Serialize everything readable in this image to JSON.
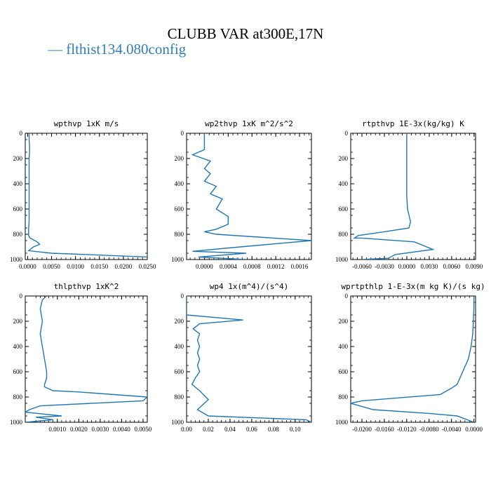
{
  "figure": {
    "title": "CLUBB VAR at300E,17N",
    "legend": {
      "label": "flthist134.080config",
      "color": "#1f77b4"
    }
  },
  "chart_data": [
    {
      "type": "line",
      "title": "wpthvp  1xK m/s",
      "xlim": [
        -0.0005,
        0.025
      ],
      "ylim": [
        1000,
        0
      ],
      "xticks": [
        0.0,
        0.005,
        0.01,
        0.015,
        0.02,
        0.025
      ],
      "xtick_labels": [
        "0.0000",
        "0.0050",
        "0.0100",
        "0.0150",
        "0.0200",
        "0.0250"
      ],
      "yticks": [
        0,
        200,
        400,
        600,
        800,
        1000
      ],
      "series": [
        {
          "x": [
            0.0003,
            0.0003,
            0.0004,
            0.0004,
            0.0003,
            0.0003,
            0.0003,
            0.0003,
            0.0003,
            0.0003,
            0.0003,
            0.0002,
            0.0002,
            0.0002,
            0.0005,
            0.002,
            0.0025,
            0.0012,
            0.0002,
            0.005,
            0.012,
            0.025
          ],
          "y": [
            0,
            50,
            100,
            150,
            200,
            250,
            300,
            400,
            500,
            600,
            700,
            760,
            800,
            810,
            830,
            860,
            880,
            900,
            930,
            950,
            960,
            980
          ]
        }
      ]
    },
    {
      "type": "line",
      "title": "wp2thvp  1xK m^2/s^2",
      "xlim": [
        -0.0003,
        0.0018
      ],
      "ylim": [
        1000,
        0
      ],
      "xticks": [
        0.0,
        0.0004,
        0.0008,
        0.0012,
        0.0016
      ],
      "xtick_labels": [
        "0.0000",
        "0.0004",
        "0.0008",
        "0.0012",
        "0.0016"
      ],
      "yticks": [
        0,
        200,
        400,
        600,
        800,
        1000
      ],
      "series": [
        {
          "x": [
            0.0,
            0.0,
            0.0,
            0.0,
            -0.0001,
            -0.0002,
            0.0001,
            0.0,
            0.0001,
            0.0,
            0.0002,
            0.0001,
            0.0003,
            0.0002,
            0.0004,
            0.0004,
            0.0002,
            0.0,
            0.0002,
            0.0018,
            0.0006,
            -0.0002,
            0.0007,
            -0.0001,
            0.0007
          ],
          "y": [
            0,
            50,
            100,
            130,
            150,
            170,
            220,
            280,
            320,
            380,
            420,
            480,
            520,
            600,
            660,
            720,
            760,
            780,
            800,
            850,
            900,
            935,
            950,
            980,
            1000
          ]
        }
      ]
    },
    {
      "type": "line",
      "title": "rtpthvp  1E-3x(kg/kg) K",
      "xlim": [
        -0.0075,
        0.0092
      ],
      "ylim": [
        1000,
        0
      ],
      "xticks": [
        -0.006,
        -0.003,
        0.0,
        0.003,
        0.006,
        0.009
      ],
      "xtick_labels": [
        "-0.0060",
        "-0.0030",
        "0.0000",
        "0.0030",
        "0.0060",
        "0.0090"
      ],
      "yticks": [
        0,
        200,
        400,
        600,
        800,
        1000
      ],
      "series": [
        {
          "x": [
            0.0,
            0.0,
            0.0,
            0.0,
            0.0001,
            0.0003,
            0.0005,
            0.0003,
            -0.003,
            -0.0065,
            -0.007,
            -0.006,
            0.001,
            0.0035,
            -0.0015,
            -0.0025,
            -0.006
          ],
          "y": [
            0,
            100,
            300,
            500,
            600,
            650,
            700,
            750,
            780,
            810,
            830,
            830,
            860,
            920,
            960,
            990,
            1000
          ]
        }
      ]
    },
    {
      "type": "line",
      "title": "thlpthvp  1xK^2",
      "xlim": [
        -0.0005,
        0.0052
      ],
      "ylim": [
        1000,
        0
      ],
      "xticks": [
        0.001,
        0.002,
        0.003,
        0.004,
        0.005
      ],
      "xtick_labels": [
        "0.0010",
        "0.0020",
        "0.0030",
        "0.0040",
        "0.0050"
      ],
      "yticks": [
        0,
        200,
        400,
        600,
        800,
        1000
      ],
      "series": [
        {
          "x": [
            0.0005,
            0.0003,
            0.0002,
            0.0003,
            0.0002,
            0.0003,
            0.0004,
            0.0005,
            0.0005,
            0.0004,
            0.0004,
            0.0008,
            0.002,
            0.0052,
            0.005,
            0.0002,
            -0.0003,
            -0.0005,
            0.0012,
            0.0,
            0.0008,
            -0.0005
          ],
          "y": [
            0,
            30,
            100,
            200,
            300,
            400,
            500,
            600,
            650,
            700,
            720,
            750,
            760,
            800,
            830,
            870,
            900,
            920,
            950,
            960,
            980,
            1000
          ]
        }
      ]
    },
    {
      "type": "line",
      "title": "wp4  1x(m^4)/(s^4)",
      "xlim": [
        0.0,
        0.115
      ],
      "ylim": [
        1000,
        0
      ],
      "xticks": [
        0.0,
        0.02,
        0.04,
        0.06,
        0.08,
        0.1
      ],
      "xtick_labels": [
        "0.00",
        "0.02",
        "0.04",
        "0.06",
        "0.08",
        "0.10"
      ],
      "yticks": [
        0,
        200,
        400,
        600,
        800,
        1000
      ],
      "series": [
        {
          "x": [
            0.0,
            0.0,
            0.0,
            0.0,
            0.0,
            0.052,
            0.012,
            0.006,
            0.012,
            0.01,
            0.012,
            0.01,
            0.012,
            0.01,
            0.012,
            0.008,
            0.005,
            0.012,
            0.02,
            0.01,
            0.02,
            0.11,
            0.115
          ],
          "y": [
            0,
            50,
            100,
            130,
            150,
            190,
            220,
            260,
            300,
            350,
            400,
            450,
            500,
            550,
            600,
            650,
            700,
            750,
            820,
            900,
            950,
            980,
            1000
          ]
        }
      ]
    },
    {
      "type": "line",
      "title": "wprtpthlp  1-E-3x(m kg K)/(s kg)",
      "xlim": [
        -0.022,
        0.0003
      ],
      "ylim": [
        1000,
        0
      ],
      "xticks": [
        -0.02,
        -0.016,
        -0.012,
        -0.008,
        -0.004,
        0.0
      ],
      "xtick_labels": [
        "-0.0200",
        "-0.0160",
        "-0.0120",
        "-0.0080",
        "-0.0040",
        "0.0000"
      ],
      "yticks": [
        0,
        200,
        400,
        600,
        800,
        1000
      ],
      "series": [
        {
          "x": [
            0.0,
            0.0,
            -0.0001,
            -0.0002,
            -0.0005,
            -0.001,
            -0.0015,
            -0.002,
            -0.0025,
            -0.003,
            -0.004,
            -0.006,
            -0.02,
            -0.022,
            -0.018,
            -0.008,
            -0.003,
            0.0
          ],
          "y": [
            0,
            100,
            200,
            300,
            400,
            500,
            550,
            600,
            650,
            700,
            730,
            780,
            830,
            850,
            900,
            930,
            950,
            1000
          ]
        }
      ]
    }
  ]
}
